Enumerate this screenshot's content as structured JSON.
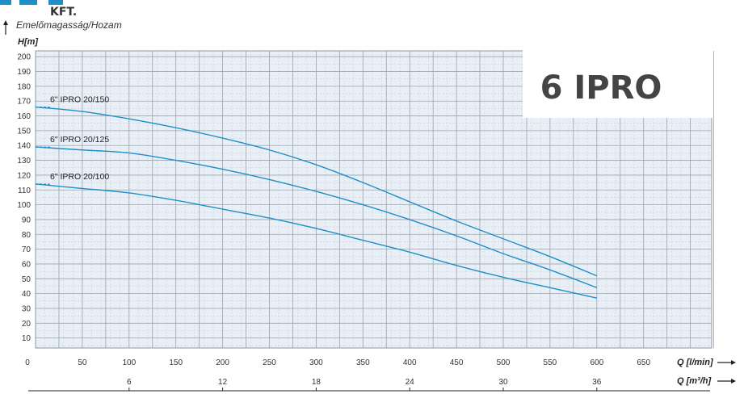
{
  "header": {
    "company": "KFT.",
    "subtitle": "Emelőmagasság/Hozam",
    "y_axis_label": "H[m]"
  },
  "chart_data": {
    "type": "line",
    "title": "6 IPRO",
    "xlabel": "Q [l/min]",
    "x2label": "Q [m³/h]",
    "ylabel": "H[m]",
    "xlim": [
      0,
      750
    ],
    "ylim": [
      0,
      205
    ],
    "grid": true,
    "x_ticks": [
      0,
      50,
      100,
      150,
      200,
      250,
      300,
      350,
      400,
      450,
      500,
      550,
      600,
      650
    ],
    "x2_ticks": [
      6,
      12,
      18,
      24,
      30,
      36
    ],
    "y_ticks": [
      10,
      20,
      30,
      40,
      50,
      60,
      70,
      80,
      90,
      100,
      110,
      120,
      130,
      140,
      150,
      160,
      170,
      180,
      190,
      200
    ],
    "colors": {
      "curve": "#1f8fc7",
      "grid_major": "#9aa3ad",
      "grid_minor": "#c9d0d8"
    },
    "series": [
      {
        "name": "6\" IPRO 20/150",
        "x": [
          0,
          50,
          100,
          150,
          200,
          250,
          300,
          350,
          400,
          450,
          500,
          550,
          600
        ],
        "y": [
          166,
          163,
          158,
          152,
          145,
          137,
          127,
          115,
          102,
          89,
          77,
          65,
          52
        ]
      },
      {
        "name": "6\" IPRO 20/125",
        "x": [
          0,
          50,
          100,
          150,
          200,
          250,
          300,
          350,
          400,
          450,
          500,
          550,
          600
        ],
        "y": [
          139,
          137,
          135,
          130,
          124,
          117,
          109,
          100,
          90,
          79,
          67,
          56,
          44
        ]
      },
      {
        "name": "6\" IPRO 20/100",
        "x": [
          0,
          50,
          100,
          150,
          200,
          250,
          300,
          350,
          400,
          450,
          500,
          550,
          600
        ],
        "y": [
          114,
          111,
          108,
          103,
          97,
          91,
          84,
          76,
          68,
          59,
          51,
          44,
          37
        ]
      }
    ]
  }
}
